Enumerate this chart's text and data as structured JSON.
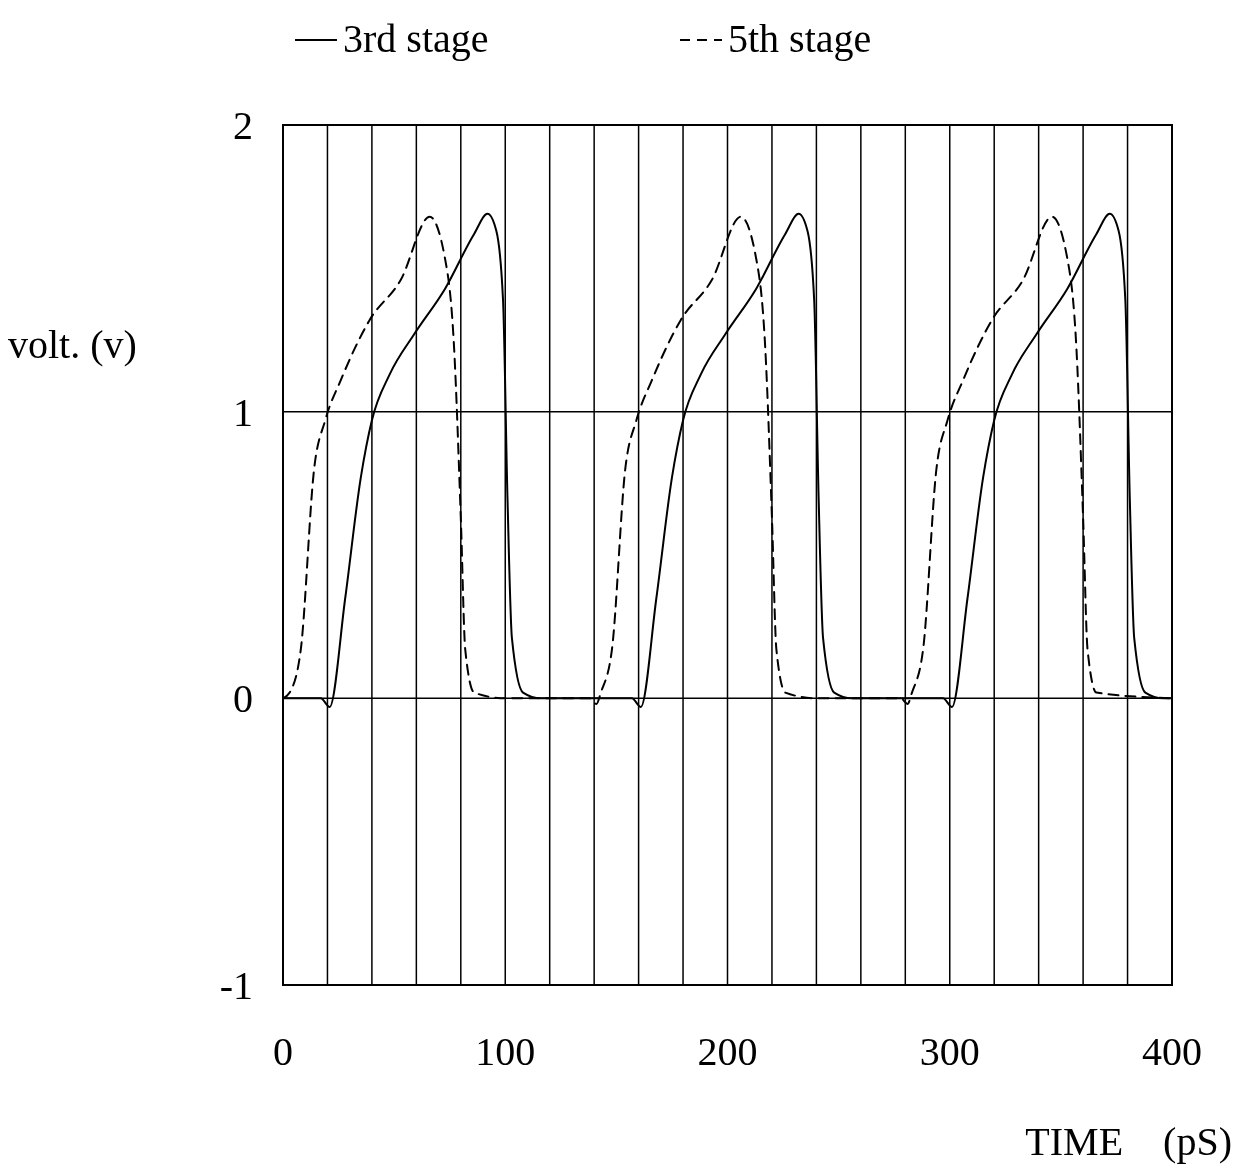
{
  "chart_data": {
    "type": "line",
    "xlabel": "TIME    (pS)",
    "ylabel": "volt. (v)",
    "xlim": [
      0,
      400
    ],
    "ylim": [
      -1,
      2
    ],
    "xticks": [
      0,
      {
        "value": 20,
        "label": null
      },
      {
        "value": 40,
        "label": null
      },
      {
        "value": 60,
        "label": null
      },
      {
        "value": 80,
        "label": null
      },
      100,
      {
        "value": 120,
        "label": null
      },
      {
        "value": 140,
        "label": null
      },
      {
        "value": 160,
        "label": null
      },
      {
        "value": 180,
        "label": null
      },
      200,
      {
        "value": 220,
        "label": null
      },
      {
        "value": 240,
        "label": null
      },
      {
        "value": 260,
        "label": null
      },
      {
        "value": 280,
        "label": null
      },
      300,
      {
        "value": 320,
        "label": null
      },
      {
        "value": 340,
        "label": null
      },
      {
        "value": 360,
        "label": null
      },
      {
        "value": 380,
        "label": null
      },
      400
    ],
    "yticks": [
      -1,
      0,
      1,
      2
    ],
    "grid": true,
    "legend": "top",
    "series": [
      {
        "name": "3rd stage",
        "color": "#000000",
        "line_style": "solid",
        "x": [
          0,
          17,
          21,
          28,
          35,
          40,
          48,
          59,
          73,
          86,
          92,
          96,
          99,
          101,
          103,
          108,
          116,
          157,
          161,
          168,
          175,
          180,
          188,
          199,
          213,
          226,
          232,
          236,
          239,
          241,
          243,
          248,
          256,
          297,
          301,
          308,
          315,
          320,
          328,
          339,
          353,
          366,
          372,
          376,
          379,
          381,
          383,
          388,
          396,
          400
        ],
        "values": [
          0,
          0,
          -0.03,
          0.35,
          0.77,
          0.97,
          1.13,
          1.27,
          1.43,
          1.62,
          1.69,
          1.63,
          1.39,
          0.7,
          0.21,
          0.02,
          0,
          0,
          -0.03,
          0.35,
          0.77,
          0.97,
          1.13,
          1.27,
          1.43,
          1.62,
          1.69,
          1.63,
          1.39,
          0.7,
          0.21,
          0.02,
          0,
          0,
          -0.03,
          0.35,
          0.77,
          0.97,
          1.13,
          1.27,
          1.43,
          1.62,
          1.69,
          1.63,
          1.39,
          0.7,
          0.21,
          0.02,
          0,
          0
        ]
      },
      {
        "name": "5th stage",
        "color": "#000000",
        "line_style": "dashed",
        "x": [
          0,
          3,
          8,
          14,
          19,
          26,
          39,
          53,
          66,
          73,
          77,
          80,
          82,
          86,
          100,
          138,
          141,
          143,
          148,
          154,
          159,
          166,
          179,
          193,
          206,
          213,
          217,
          220,
          222,
          226,
          240,
          278,
          281,
          283,
          288,
          294,
          299,
          306,
          319,
          333,
          346,
          353,
          357,
          360,
          362,
          366,
          400
        ],
        "values": [
          0,
          0.02,
          0.17,
          0.8,
          0.97,
          1.11,
          1.32,
          1.46,
          1.68,
          1.53,
          1.22,
          0.63,
          0.17,
          0.02,
          0,
          0,
          -0.02,
          0.02,
          0.17,
          0.8,
          0.97,
          1.11,
          1.32,
          1.46,
          1.68,
          1.53,
          1.22,
          0.63,
          0.17,
          0.02,
          0,
          0,
          -0.02,
          0.02,
          0.17,
          0.8,
          0.97,
          1.11,
          1.32,
          1.46,
          1.68,
          1.53,
          1.22,
          0.63,
          0.17,
          0.02,
          0
        ]
      }
    ]
  }
}
